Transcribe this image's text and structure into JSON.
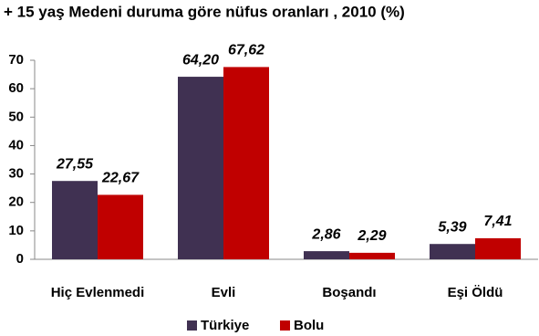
{
  "chart_data": {
    "type": "bar",
    "title": "+ 15 yaş Medeni duruma göre nüfus oranları , 2010 (%)",
    "categories": [
      "Hiç Evlenmedi",
      "Evli",
      "Boşandı",
      "Eşi Öldü"
    ],
    "series": [
      {
        "name": "Türkiye",
        "color": "#403152",
        "values": [
          27.55,
          64.2,
          2.86,
          5.39
        ],
        "value_labels": [
          "27,55",
          "64,20",
          "2,86",
          "5,39"
        ]
      },
      {
        "name": "Bolu",
        "color": "#c00000",
        "values": [
          22.67,
          67.62,
          2.29,
          7.41
        ],
        "value_labels": [
          "22,67",
          "67,62",
          "2,29",
          "7,41"
        ]
      }
    ],
    "ylim": [
      0,
      70
    ],
    "yticks": [
      0,
      10,
      20,
      30,
      40,
      50,
      60,
      70
    ],
    "grid": false,
    "legend": "bottom"
  }
}
